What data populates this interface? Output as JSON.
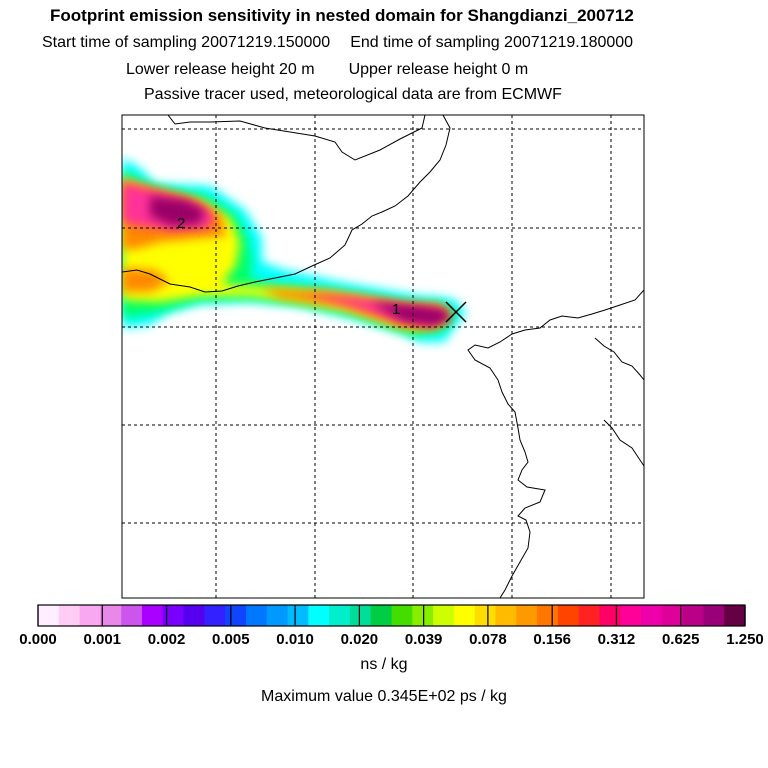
{
  "header": {
    "title": "Footprint emission sensitivity in nested domain for Shangdianzi_200712",
    "start_label": "Start time of sampling 20071219.150000",
    "end_label": "End time of sampling 20071219.180000",
    "lower_label": "Lower release height   20 m",
    "upper_label": "Upper release height    0 m",
    "tracer_label": "Passive tracer used, meteorological data are from ECMWF"
  },
  "map": {
    "release_markers": [
      "1",
      "2"
    ],
    "receptor_marker": "X",
    "plume_colors": {
      "outer": "#00ffff",
      "low": "#00ff66",
      "mid": "#ffff00",
      "high": "#ff8800",
      "higher": "#ff3399",
      "max": "#990066"
    }
  },
  "legend": {
    "colors": [
      "#ffeeff",
      "#ffccf5",
      "#f7a8f0",
      "#e888e8",
      "#cc55ee",
      "#aa00ff",
      "#7700ff",
      "#5500ee",
      "#3322ff",
      "#1144ff",
      "#0077ff",
      "#0099ff",
      "#00bbff",
      "#00ffff",
      "#00eecc",
      "#00dd99",
      "#00cc44",
      "#44dd00",
      "#88ee00",
      "#ccff00",
      "#ffff00",
      "#ffdd00",
      "#ffbb00",
      "#ff9900",
      "#ff7700",
      "#ff4400",
      "#ff2222",
      "#ff0066",
      "#ff0099",
      "#ee00aa",
      "#dd0099",
      "#bb0088",
      "#990077",
      "#660044"
    ],
    "ticks": [
      "0.000",
      "0.001",
      "0.002",
      "0.005",
      "0.010",
      "0.020",
      "0.039",
      "0.078",
      "0.156",
      "0.312",
      "0.625",
      "1.250"
    ],
    "units": "ns / kg",
    "max_value": "Maximum value  0.345E+02 ps / kg"
  }
}
